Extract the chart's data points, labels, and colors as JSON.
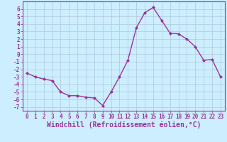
{
  "x": [
    0,
    1,
    2,
    3,
    4,
    5,
    6,
    7,
    8,
    9,
    10,
    11,
    12,
    13,
    14,
    15,
    16,
    17,
    18,
    19,
    20,
    21,
    22,
    23
  ],
  "y": [
    -2.5,
    -3.0,
    -3.3,
    -3.5,
    -5.0,
    -5.5,
    -5.5,
    -5.7,
    -5.8,
    -6.8,
    -5.0,
    -3.0,
    -0.8,
    3.5,
    5.5,
    6.2,
    4.5,
    2.8,
    2.7,
    2.0,
    1.0,
    -0.8,
    -0.7,
    -3.0
  ],
  "line_color": "#993399",
  "marker": "D",
  "markersize": 2.0,
  "linewidth": 1.0,
  "xlabel": "Windchill (Refroidissement éolien,°C)",
  "xlabel_fontsize": 7,
  "xlim": [
    -0.5,
    23.5
  ],
  "ylim": [
    -7.5,
    7.0
  ],
  "yticks": [
    -7,
    -6,
    -5,
    -4,
    -3,
    -2,
    -1,
    0,
    1,
    2,
    3,
    4,
    5,
    6
  ],
  "xticks": [
    0,
    1,
    2,
    3,
    4,
    5,
    6,
    7,
    8,
    9,
    10,
    11,
    12,
    13,
    14,
    15,
    16,
    17,
    18,
    19,
    20,
    21,
    22,
    23
  ],
  "bg_color": "#cceeff",
  "grid_color": "#b0c8d8",
  "tick_fontsize": 5.5,
  "border_color": "#993399",
  "spine_color": "#993399"
}
